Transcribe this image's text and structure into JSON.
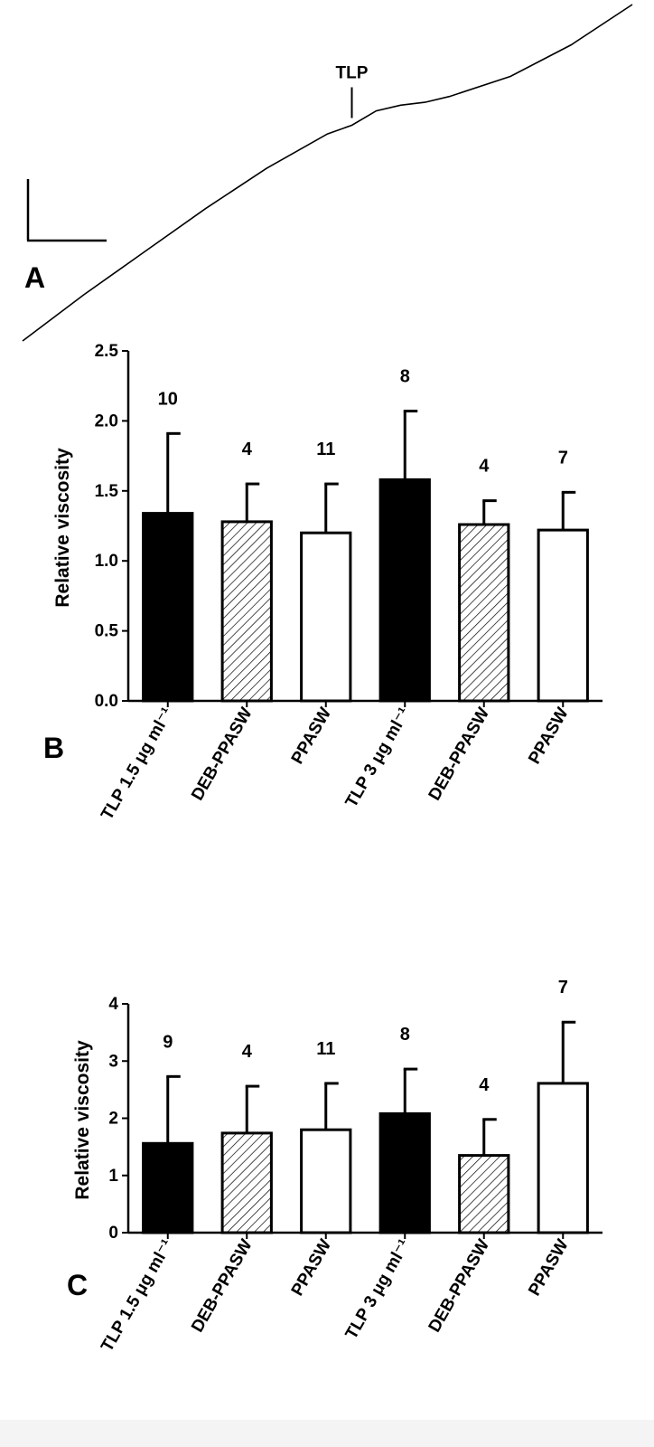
{
  "panels": {
    "a": {
      "letter": "A",
      "marker_label": "TLP"
    },
    "b": {
      "letter": "B"
    },
    "c": {
      "letter": "C"
    }
  },
  "colors": {
    "filled_bar": "#000000",
    "hatched_bar_fill": "#ffffff",
    "hatch_line": "#000000",
    "open_bar": "#ffffff",
    "stroke": "#000000",
    "footer_band": "#f4f4f4"
  },
  "chart_data": [
    {
      "type": "line",
      "title": "",
      "xlabel": "",
      "ylabel": "",
      "series": [
        {
          "values_note_free": true,
          "x": [
            0,
            10,
            20,
            30,
            40,
            50,
            54,
            58,
            62,
            66,
            70,
            80,
            90,
            100
          ],
          "y": [
            0,
            16,
            31,
            46,
            60,
            72,
            75,
            80,
            82,
            83,
            85,
            92,
            103,
            117
          ]
        }
      ],
      "annotations": [
        {
          "label": "TLP",
          "x": 54
        }
      ]
    },
    {
      "type": "bar",
      "title": "",
      "xlabel": "",
      "ylabel": "Relative viscosity",
      "ylim": [
        0,
        2.5
      ],
      "yticks": [
        "0.0",
        "0.5",
        "1.0",
        "1.5",
        "2.0",
        "2.5"
      ],
      "ytick_values": [
        0,
        0.5,
        1.0,
        1.5,
        2.0,
        2.5
      ],
      "categories": [
        "TLP 1.5 μg ml⁻¹",
        "DEB-PPASW",
        "PPASW",
        "TLP 3 μg ml⁻¹",
        "DEB-PPASW",
        "PPASW"
      ],
      "values": [
        1.34,
        1.28,
        1.2,
        1.58,
        1.26,
        1.22
      ],
      "errors": [
        0.57,
        0.27,
        0.35,
        0.49,
        0.17,
        0.27
      ],
      "n_labels": [
        "10",
        "4",
        "11",
        "8",
        "4",
        "7"
      ],
      "styles": [
        "filled",
        "hatched",
        "open",
        "filled",
        "hatched",
        "open"
      ],
      "grid": false
    },
    {
      "type": "bar",
      "title": "",
      "xlabel": "",
      "ylabel": "Relative viscosity",
      "ylim": [
        0,
        4
      ],
      "yticks": [
        "0",
        "1",
        "2",
        "3",
        "4"
      ],
      "ytick_values": [
        0,
        1,
        2,
        3,
        4
      ],
      "categories": [
        "TLP 1.5 μg ml⁻¹",
        "DEB-PPASW",
        "PPASW",
        "TLP 3 μg ml⁻¹",
        "DEB-PPASW",
        "PPASW"
      ],
      "values": [
        1.56,
        1.74,
        1.8,
        2.08,
        1.35,
        2.61
      ],
      "errors": [
        1.17,
        0.82,
        0.81,
        0.78,
        0.63,
        1.07
      ],
      "n_labels": [
        "9",
        "4",
        "11",
        "8",
        "4",
        "7"
      ],
      "styles": [
        "filled",
        "hatched",
        "open",
        "filled",
        "hatched",
        "open"
      ],
      "grid": false
    }
  ]
}
